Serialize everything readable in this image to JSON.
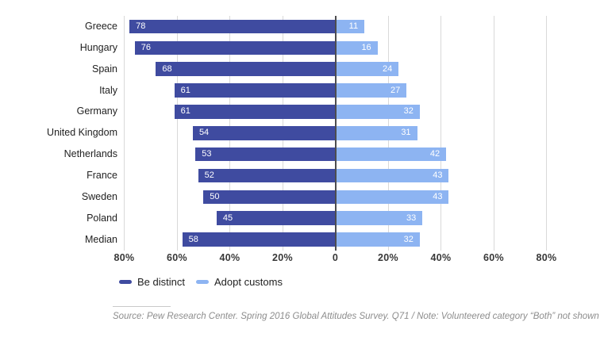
{
  "chart_data": {
    "type": "bar",
    "orientation": "diverging-horizontal",
    "title": "",
    "categories": [
      "Greece",
      "Hungary",
      "Spain",
      "Italy",
      "Germany",
      "United Kingdom",
      "Netherlands",
      "France",
      "Sweden",
      "Poland",
      "Median"
    ],
    "series": [
      {
        "name": "Be distinct",
        "color": "#3F4BA0",
        "direction": "left",
        "values": [
          78,
          76,
          68,
          61,
          61,
          54,
          53,
          52,
          50,
          45,
          58
        ]
      },
      {
        "name": "Adopt customs",
        "color": "#8DB4F2",
        "direction": "right",
        "values": [
          11,
          16,
          24,
          27,
          32,
          31,
          42,
          43,
          43,
          33,
          32
        ]
      }
    ],
    "x_axis": {
      "ticks": [
        -80,
        -60,
        -40,
        -20,
        0,
        20,
        40,
        60,
        80
      ],
      "tick_labels": [
        "80%",
        "60%",
        "40%",
        "20%",
        "0",
        "20%",
        "40%",
        "60%",
        "80%"
      ],
      "range_pct": [
        -80,
        80
      ]
    },
    "grid": true,
    "value_labels": "inside-outer-end, white",
    "legend_position": "bottom-left"
  },
  "legend": {
    "items": [
      {
        "label": "Be distinct",
        "color": "#3F4BA0"
      },
      {
        "label": "Adopt customs",
        "color": "#8DB4F2"
      }
    ]
  },
  "source_note": "Source: Pew Research Center. Spring 2016 Global Attitudes Survey. Q71 / Note: Volunteered category “Both” not shown",
  "colors": {
    "dark_blue": "#3F4BA0",
    "light_blue": "#8DB4F2",
    "gridline": "#d9d9d9",
    "zero_line": "#4d4d50",
    "axis_text": "#383838",
    "category_text": "#1f1f1f",
    "source_text": "#8d8d8d",
    "background": "#ffffff"
  }
}
